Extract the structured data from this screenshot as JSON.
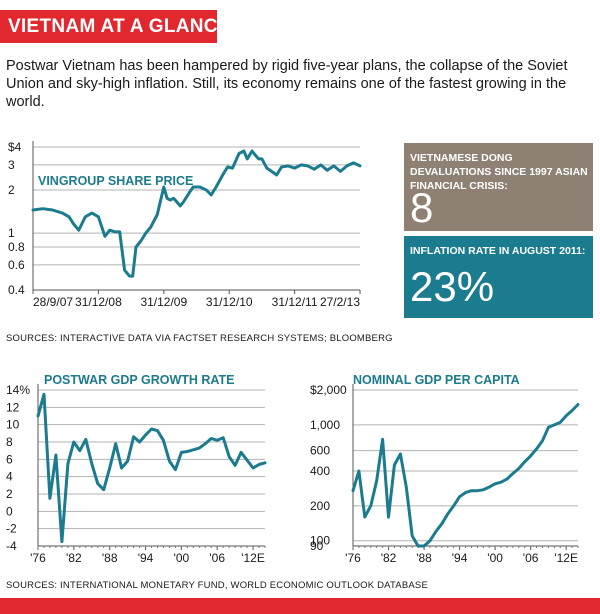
{
  "header": {
    "title": "VIETNAM AT A GLANCE"
  },
  "intro": "Postwar Vietnam has been hampered by rigid five-year plans, the collapse of the Soviet Union and sky-high inflation. Still, its economy remains one of the fastest growing in the world.",
  "colors": {
    "accent": "#e0282e",
    "series": "#1b7b8f",
    "box_dark": "#8e8173",
    "box_teal": "#1b7b8f"
  },
  "stats": {
    "devaluations": {
      "label": "VIETNAMESE DONG DEVALUATIONS SINCE 1997 ASIAN FINANCIAL CRISIS:",
      "value": "8"
    },
    "inflation": {
      "label": "INFLATION RATE IN AUGUST 2011:",
      "value": "23%"
    }
  },
  "sources": {
    "top": "SOURCES: INTERACTIVE DATA VIA FACTSET RESEARCH SYSTEMS; BLOOMBERG",
    "bottom": "SOURCES: INTERNATIONAL MONETARY FUND, WORLD ECONOMIC OUTLOOK DATABASE"
  },
  "chart_data": [
    {
      "type": "line",
      "title": "VINGROUP SHARE PRICE",
      "scale": "log",
      "ylim": [
        0.4,
        4
      ],
      "y_ticks": [
        4,
        3,
        2,
        1,
        0.8,
        0.6,
        0.4
      ],
      "y_tick_labels": [
        "$4",
        "3",
        "2",
        "1",
        "0.8",
        "0.6",
        "0.4"
      ],
      "x_tick_labels": [
        "28/9/07",
        "31/12/08",
        "31/12/09",
        "31/12/10",
        "31/12/11",
        "27/2/13"
      ],
      "xlim": [
        0,
        100
      ],
      "series": [
        {
          "name": "Vingroup",
          "x": [
            0,
            3,
            6,
            9,
            11,
            12.5,
            14,
            16,
            18,
            20,
            22,
            23.5,
            25,
            26.5,
            28,
            29.5,
            30.5,
            31.5,
            33,
            34.5,
            36,
            38,
            40,
            41,
            42,
            43,
            44,
            45,
            46,
            48,
            49,
            51,
            53,
            54.5,
            56,
            58,
            59.5,
            61,
            63,
            64.5,
            65.5,
            67,
            68,
            69,
            70,
            71.5,
            73,
            74.5,
            76,
            78,
            80,
            82,
            84,
            86,
            88,
            90,
            92,
            94,
            96,
            98,
            100
          ],
          "values": [
            1.45,
            1.48,
            1.45,
            1.38,
            1.3,
            1.15,
            1.05,
            1.3,
            1.38,
            1.3,
            0.95,
            1.05,
            1.02,
            1.02,
            0.55,
            0.5,
            0.5,
            0.8,
            0.88,
            1.0,
            1.1,
            1.35,
            2.1,
            1.75,
            1.7,
            1.75,
            1.65,
            1.55,
            1.65,
            1.95,
            2.1,
            2.1,
            2.0,
            1.85,
            2.1,
            2.55,
            2.9,
            2.85,
            3.6,
            3.75,
            3.3,
            3.75,
            3.5,
            3.3,
            3.3,
            2.85,
            2.7,
            2.55,
            2.9,
            2.95,
            2.85,
            3.0,
            2.95,
            2.8,
            3.0,
            2.75,
            2.95,
            2.7,
            2.95,
            3.1,
            2.95
          ]
        }
      ]
    },
    {
      "type": "line",
      "title": "POSTWAR GDP GROWTH RATE",
      "ylim": [
        -4,
        14
      ],
      "y_ticks": [
        14,
        12,
        10,
        8,
        6,
        4,
        2,
        0,
        -2,
        -4
      ],
      "y_tick_labels": [
        "14%",
        "12",
        "10",
        "8",
        "6",
        "4",
        "2",
        "0",
        "-2",
        "-4"
      ],
      "x_tick_labels": [
        "'76",
        "'82",
        "'88",
        "'94",
        "'00",
        "'06",
        "'12E"
      ],
      "x_tick_values": [
        1976,
        1982,
        1988,
        1994,
        2000,
        2006,
        2012
      ],
      "xlim": [
        1976,
        2014
      ],
      "series": [
        {
          "name": "GDP growth",
          "x": [
            1976,
            1977,
            1978,
            1979,
            1980,
            1981,
            1982,
            1983,
            1984,
            1985,
            1986,
            1987,
            1988,
            1989,
            1990,
            1991,
            1992,
            1993,
            1994,
            1995,
            1996,
            1997,
            1998,
            1999,
            2000,
            2001,
            2002,
            2003,
            2004,
            2005,
            2006,
            2007,
            2008,
            2009,
            2010,
            2011,
            2012,
            2013,
            2014
          ],
          "values": [
            11.0,
            13.5,
            1.5,
            6.5,
            -3.5,
            5.5,
            8.0,
            7.0,
            8.3,
            5.5,
            3.2,
            2.5,
            5.0,
            7.8,
            5.0,
            5.8,
            8.6,
            8.0,
            8.8,
            9.5,
            9.3,
            8.2,
            5.8,
            4.8,
            6.8,
            6.9,
            7.1,
            7.3,
            7.8,
            8.4,
            8.2,
            8.5,
            6.3,
            5.3,
            6.8,
            5.9,
            5.0,
            5.4,
            5.6
          ]
        }
      ]
    },
    {
      "type": "line",
      "title": "NOMINAL GDP PER CAPITA",
      "scale": "log",
      "ylim": [
        90,
        2000
      ],
      "y_ticks": [
        2000,
        1000,
        600,
        400,
        200,
        100,
        90
      ],
      "y_tick_labels": [
        "$2,000",
        "1,000",
        "600",
        "400",
        "200",
        "100",
        "90"
      ],
      "x_tick_labels": [
        "'76",
        "'82",
        "'88",
        "'94",
        "'00",
        "'06",
        "'12E"
      ],
      "x_tick_values": [
        1976,
        1982,
        1988,
        1994,
        2000,
        2006,
        2012
      ],
      "xlim": [
        1976,
        2014
      ],
      "series": [
        {
          "name": "GDP per capita",
          "x": [
            1976,
            1977,
            1978,
            1979,
            1980,
            1981,
            1982,
            1983,
            1984,
            1985,
            1986,
            1987,
            1988,
            1989,
            1990,
            1991,
            1992,
            1993,
            1994,
            1995,
            1996,
            1997,
            1998,
            1999,
            2000,
            2001,
            2002,
            2003,
            2004,
            2005,
            2006,
            2007,
            2008,
            2009,
            2010,
            2011,
            2012,
            2013,
            2014
          ],
          "values": [
            270,
            400,
            160,
            200,
            330,
            750,
            160,
            450,
            560,
            290,
            110,
            90,
            90,
            100,
            120,
            140,
            170,
            200,
            240,
            260,
            270,
            270,
            275,
            290,
            310,
            320,
            340,
            380,
            420,
            480,
            540,
            620,
            730,
            950,
            1000,
            1050,
            1200,
            1330,
            1500
          ]
        }
      ]
    }
  ]
}
